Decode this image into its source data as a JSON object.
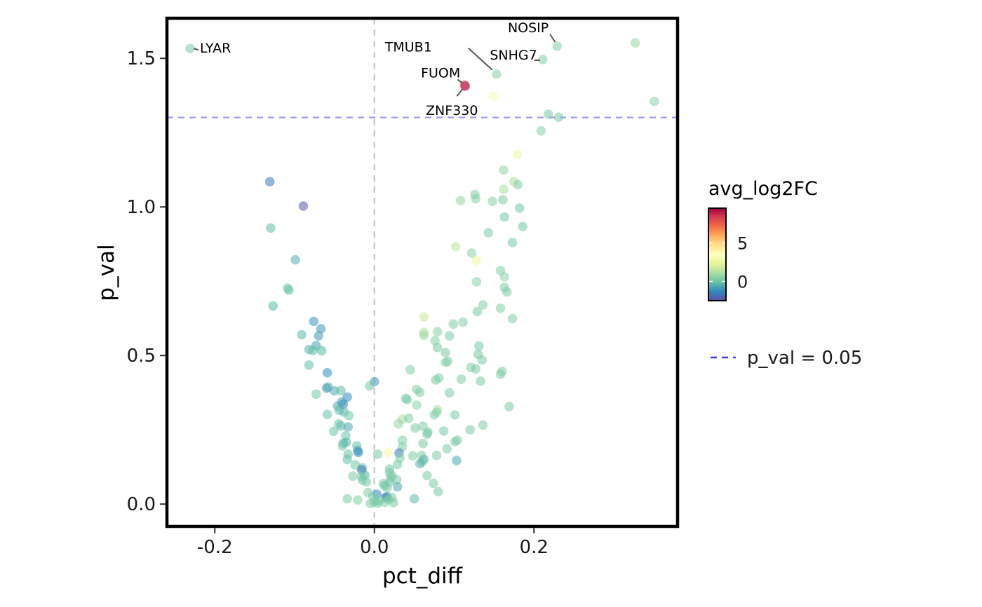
{
  "chart_data": {
    "type": "scatter",
    "xlabel": "pct_diff",
    "ylabel": "p_val",
    "xlim": [
      -0.26,
      0.38
    ],
    "ylim": [
      -0.075,
      1.635
    ],
    "x_ticks": [
      -0.2,
      0.0,
      0.2
    ],
    "x_tick_labels": [
      "-0.2",
      "0.0",
      "0.2"
    ],
    "y_ticks": [
      0.0,
      0.5,
      1.0,
      1.5
    ],
    "y_tick_labels": [
      "0.0",
      "0.5",
      "1.0",
      "1.5"
    ],
    "grid": false,
    "reference_lines": [
      {
        "orientation": "vertical",
        "value": 0.0,
        "color": "#c8c8c8",
        "style": "dashed"
      },
      {
        "orientation": "horizontal",
        "value": 1.301,
        "color": "#9a9af0",
        "style": "dashed"
      }
    ],
    "color_legend": {
      "title": "avg_log2FC",
      "position": "right",
      "range": [
        -2.5,
        9.5
      ],
      "ticks": [
        0,
        5
      ],
      "tick_labels": [
        "0",
        "5"
      ],
      "stops": [
        "#5e4fa2",
        "#3288bd",
        "#66c2a5",
        "#abdda4",
        "#e6f598",
        "#ffffbf",
        "#fee08b",
        "#fdae61",
        "#f46d43",
        "#d53e4f",
        "#9e0142"
      ]
    },
    "line_legend": {
      "label": "p_val = 0.05",
      "color": "#3a3ae0"
    },
    "point_opacity": 0.55,
    "points": [
      {
        "x": -0.231,
        "y": 1.533,
        "c": 0.3,
        "label": "LYAR"
      },
      {
        "x": 0.229,
        "y": 1.541,
        "c": 0.4,
        "label": "NOSIP"
      },
      {
        "x": 0.153,
        "y": 1.447,
        "c": 0.5,
        "label": "TMUB1"
      },
      {
        "x": 0.211,
        "y": 1.496,
        "c": 0.4,
        "label": "SNHG7"
      },
      {
        "x": 0.113,
        "y": 1.41,
        "c": 8.5,
        "label": "FUOM"
      },
      {
        "x": 0.114,
        "y": 1.406,
        "c": 9.0,
        "label": "ZNF330"
      },
      {
        "x": 0.327,
        "y": 1.552,
        "c": 0.8
      },
      {
        "x": 0.149,
        "y": 1.372,
        "c": 3.0
      },
      {
        "x": 0.351,
        "y": 1.355,
        "c": 0.5
      },
      {
        "x": 0.218,
        "y": 1.312,
        "c": 0.3
      },
      {
        "x": 0.231,
        "y": 1.302,
        "c": 0.3
      },
      {
        "x": 0.209,
        "y": 1.256,
        "c": 0.5
      },
      {
        "x": 0.179,
        "y": 1.177,
        "c": 2.7
      },
      {
        "x": -0.131,
        "y": 1.085,
        "c": -1.6
      },
      {
        "x": -0.089,
        "y": 1.003,
        "c": -2.3
      },
      {
        "x": 0.162,
        "y": 1.124,
        "c": 0.7
      },
      {
        "x": 0.175,
        "y": 1.085,
        "c": 1.2
      },
      {
        "x": 0.18,
        "y": 1.075,
        "c": 0.4
      },
      {
        "x": 0.126,
        "y": 1.042,
        "c": 0.5
      },
      {
        "x": 0.162,
        "y": 1.059,
        "c": 1.1
      },
      {
        "x": 0.127,
        "y": 1.028,
        "c": 0.4
      },
      {
        "x": 0.108,
        "y": 1.021,
        "c": 0.8
      },
      {
        "x": 0.148,
        "y": 1.019,
        "c": 0.5
      },
      {
        "x": 0.161,
        "y": 1.024,
        "c": 0.3
      },
      {
        "x": 0.182,
        "y": 0.996,
        "c": 0.2
      },
      {
        "x": 0.163,
        "y": 0.966,
        "c": 0.2
      },
      {
        "x": 0.186,
        "y": 0.934,
        "c": 0.2
      },
      {
        "x": 0.143,
        "y": 0.913,
        "c": 0.3
      },
      {
        "x": 0.173,
        "y": 0.88,
        "c": 0.2
      },
      {
        "x": -0.13,
        "y": 0.929,
        "c": -0.2
      },
      {
        "x": 0.102,
        "y": 0.866,
        "c": 1.5
      },
      {
        "x": 0.122,
        "y": 0.845,
        "c": 0.6
      },
      {
        "x": 0.128,
        "y": 0.82,
        "c": 2.6
      },
      {
        "x": -0.099,
        "y": 0.822,
        "c": -0.5
      },
      {
        "x": 0.158,
        "y": 0.786,
        "c": 0.4
      },
      {
        "x": 0.163,
        "y": 0.765,
        "c": 0.6
      },
      {
        "x": 0.128,
        "y": 0.748,
        "c": 0.5
      },
      {
        "x": 0.163,
        "y": 0.729,
        "c": 0.3
      },
      {
        "x": 0.166,
        "y": 0.714,
        "c": 0.3
      },
      {
        "x": -0.109,
        "y": 0.727,
        "c": 0.1
      },
      {
        "x": -0.107,
        "y": 0.72,
        "c": -0.1
      },
      {
        "x": -0.127,
        "y": 0.667,
        "c": -0.3
      },
      {
        "x": 0.136,
        "y": 0.67,
        "c": 0.4
      },
      {
        "x": 0.158,
        "y": 0.659,
        "c": 0.5
      },
      {
        "x": 0.129,
        "y": 0.648,
        "c": 0.3
      },
      {
        "x": 0.062,
        "y": 0.63,
        "c": 1.6
      },
      {
        "x": 0.173,
        "y": 0.624,
        "c": 0.4
      },
      {
        "x": -0.076,
        "y": 0.615,
        "c": -1.1
      },
      {
        "x": 0.111,
        "y": 0.612,
        "c": 0.4
      },
      {
        "x": 0.099,
        "y": 0.606,
        "c": 0.3
      },
      {
        "x": -0.067,
        "y": 0.59,
        "c": -1.0
      },
      {
        "x": 0.079,
        "y": 0.58,
        "c": 0.5
      },
      {
        "x": 0.062,
        "y": 0.578,
        "c": 1.2
      },
      {
        "x": 0.062,
        "y": 0.568,
        "c": 0.8
      },
      {
        "x": -0.07,
        "y": 0.566,
        "c": -0.9
      },
      {
        "x": -0.091,
        "y": 0.57,
        "c": -0.3
      },
      {
        "x": 0.094,
        "y": 0.566,
        "c": 0.3
      },
      {
        "x": 0.076,
        "y": 0.55,
        "c": 0.5
      },
      {
        "x": -0.073,
        "y": 0.533,
        "c": -0.8
      },
      {
        "x": 0.131,
        "y": 0.532,
        "c": 0.2
      },
      {
        "x": 0.079,
        "y": 0.527,
        "c": 0.3
      },
      {
        "x": -0.082,
        "y": 0.52,
        "c": -0.4
      },
      {
        "x": -0.066,
        "y": 0.516,
        "c": -0.3
      },
      {
        "x": -0.077,
        "y": 0.517,
        "c": -0.2
      },
      {
        "x": 0.089,
        "y": 0.51,
        "c": 0.3
      },
      {
        "x": 0.13,
        "y": 0.504,
        "c": 0.2
      },
      {
        "x": 0.135,
        "y": 0.485,
        "c": 0.3
      },
      {
        "x": 0.092,
        "y": 0.48,
        "c": 0.3
      },
      {
        "x": 0.089,
        "y": 0.477,
        "c": 0.4
      },
      {
        "x": -0.082,
        "y": 0.468,
        "c": -0.2
      },
      {
        "x": 0.121,
        "y": 0.46,
        "c": 0.4
      },
      {
        "x": 0.127,
        "y": 0.455,
        "c": 0.3
      },
      {
        "x": 0.045,
        "y": 0.452,
        "c": 0.4
      },
      {
        "x": 0.16,
        "y": 0.446,
        "c": 0.3
      },
      {
        "x": -0.059,
        "y": 0.442,
        "c": -1.2
      },
      {
        "x": 0.158,
        "y": 0.437,
        "c": 0.4
      },
      {
        "x": 0.081,
        "y": 0.425,
        "c": 0.4
      },
      {
        "x": 0.109,
        "y": 0.42,
        "c": 0.3
      },
      {
        "x": 0.077,
        "y": 0.418,
        "c": 0.3
      },
      {
        "x": 0.133,
        "y": 0.414,
        "c": 0.3
      },
      {
        "x": 0.0,
        "y": 0.412,
        "c": -1.0
      },
      {
        "x": -0.006,
        "y": 0.398,
        "c": 0.2
      },
      {
        "x": -0.058,
        "y": 0.394,
        "c": -0.6
      },
      {
        "x": 0.053,
        "y": 0.386,
        "c": 0.4
      },
      {
        "x": -0.06,
        "y": 0.39,
        "c": -0.8
      },
      {
        "x": -0.05,
        "y": 0.381,
        "c": -0.6
      },
      {
        "x": -0.042,
        "y": 0.382,
        "c": -0.2
      },
      {
        "x": 0.057,
        "y": 0.376,
        "c": 0.3
      },
      {
        "x": 0.094,
        "y": 0.374,
        "c": 0.3
      },
      {
        "x": -0.073,
        "y": 0.37,
        "c": 0.2
      },
      {
        "x": -0.034,
        "y": 0.36,
        "c": -1.2
      },
      {
        "x": 0.039,
        "y": 0.356,
        "c": 0.4
      },
      {
        "x": 0.041,
        "y": 0.352,
        "c": 0.2
      },
      {
        "x": -0.041,
        "y": 0.344,
        "c": -0.7
      },
      {
        "x": -0.039,
        "y": 0.336,
        "c": -1.2
      },
      {
        "x": -0.046,
        "y": 0.33,
        "c": -0.6
      },
      {
        "x": 0.053,
        "y": 0.333,
        "c": 0.5
      },
      {
        "x": 0.169,
        "y": 0.328,
        "c": 0.3
      },
      {
        "x": -0.044,
        "y": 0.316,
        "c": -0.3
      },
      {
        "x": 0.079,
        "y": 0.318,
        "c": 1.3
      },
      {
        "x": -0.038,
        "y": 0.31,
        "c": -0.4
      },
      {
        "x": 0.078,
        "y": 0.309,
        "c": 0.4
      },
      {
        "x": -0.059,
        "y": 0.302,
        "c": -0.1
      },
      {
        "x": 0.075,
        "y": 0.3,
        "c": 0.4
      },
      {
        "x": -0.032,
        "y": 0.298,
        "c": 0.1
      },
      {
        "x": 0.101,
        "y": 0.3,
        "c": 0.3
      },
      {
        "x": 0.035,
        "y": 0.286,
        "c": 1.1
      },
      {
        "x": 0.043,
        "y": 0.289,
        "c": 0.4
      },
      {
        "x": -0.045,
        "y": 0.27,
        "c": 0.1
      },
      {
        "x": -0.042,
        "y": 0.263,
        "c": -0.3
      },
      {
        "x": 0.03,
        "y": 0.27,
        "c": 0.7
      },
      {
        "x": -0.033,
        "y": 0.26,
        "c": -0.6
      },
      {
        "x": 0.061,
        "y": 0.262,
        "c": 0.4
      },
      {
        "x": 0.136,
        "y": 0.266,
        "c": 0.4
      },
      {
        "x": -0.051,
        "y": 0.245,
        "c": 0.0
      },
      {
        "x": 0.051,
        "y": 0.256,
        "c": 0.3
      },
      {
        "x": 0.067,
        "y": 0.242,
        "c": 0.1
      },
      {
        "x": 0.066,
        "y": 0.235,
        "c": 0.2
      },
      {
        "x": 0.087,
        "y": 0.246,
        "c": 0.2
      },
      {
        "x": 0.12,
        "y": 0.25,
        "c": 0.3
      },
      {
        "x": -0.036,
        "y": 0.23,
        "c": 0.0
      },
      {
        "x": 0.104,
        "y": 0.215,
        "c": 0.3
      },
      {
        "x": 0.101,
        "y": 0.21,
        "c": 0.3
      },
      {
        "x": 0.035,
        "y": 0.215,
        "c": 0.4
      },
      {
        "x": -0.035,
        "y": 0.208,
        "c": -0.3
      },
      {
        "x": -0.039,
        "y": 0.205,
        "c": -0.6
      },
      {
        "x": 0.061,
        "y": 0.204,
        "c": 0.3
      },
      {
        "x": -0.022,
        "y": 0.196,
        "c": -0.2
      },
      {
        "x": -0.04,
        "y": 0.196,
        "c": 0.1
      },
      {
        "x": 0.035,
        "y": 0.193,
        "c": 0.3
      },
      {
        "x": -0.021,
        "y": 0.18,
        "c": -0.9
      },
      {
        "x": -0.02,
        "y": 0.174,
        "c": -1.2
      },
      {
        "x": 0.031,
        "y": 0.172,
        "c": -1.6
      },
      {
        "x": 0.017,
        "y": 0.174,
        "c": 2.8
      },
      {
        "x": 0.091,
        "y": 0.186,
        "c": 0.3
      },
      {
        "x": 0.059,
        "y": 0.164,
        "c": 0.4
      },
      {
        "x": -0.033,
        "y": 0.168,
        "c": 0.0
      },
      {
        "x": 0.078,
        "y": 0.164,
        "c": 0.3
      },
      {
        "x": 0.048,
        "y": 0.162,
        "c": 0.4
      },
      {
        "x": 0.004,
        "y": 0.168,
        "c": 0.3
      },
      {
        "x": 0.032,
        "y": 0.155,
        "c": 0.4
      },
      {
        "x": -0.034,
        "y": 0.15,
        "c": -0.2
      },
      {
        "x": 0.062,
        "y": 0.15,
        "c": -0.6
      },
      {
        "x": 0.103,
        "y": 0.147,
        "c": -0.7
      },
      {
        "x": 0.06,
        "y": 0.142,
        "c": 0.1
      },
      {
        "x": 0.057,
        "y": 0.136,
        "c": -0.4
      },
      {
        "x": -0.024,
        "y": 0.132,
        "c": 0.1
      },
      {
        "x": 0.029,
        "y": 0.134,
        "c": 0.2
      },
      {
        "x": -0.015,
        "y": 0.122,
        "c": -0.2
      },
      {
        "x": -0.016,
        "y": 0.115,
        "c": -1.7
      },
      {
        "x": 0.019,
        "y": 0.118,
        "c": 0.0
      },
      {
        "x": 0.019,
        "y": 0.105,
        "c": 0.2
      },
      {
        "x": 0.022,
        "y": 0.096,
        "c": 0.3
      },
      {
        "x": -0.012,
        "y": 0.098,
        "c": -0.4
      },
      {
        "x": 0.066,
        "y": 0.096,
        "c": 0.3
      },
      {
        "x": -0.027,
        "y": 0.094,
        "c": 0.3
      },
      {
        "x": -0.016,
        "y": 0.092,
        "c": 0.2
      },
      {
        "x": 0.021,
        "y": 0.087,
        "c": 0.3
      },
      {
        "x": -0.015,
        "y": 0.081,
        "c": 0.1
      },
      {
        "x": 0.028,
        "y": 0.082,
        "c": 0.3
      },
      {
        "x": 0.019,
        "y": 0.075,
        "c": 0.2
      },
      {
        "x": -0.01,
        "y": 0.075,
        "c": 0.2
      },
      {
        "x": 0.074,
        "y": 0.07,
        "c": 0.3
      },
      {
        "x": 0.011,
        "y": 0.069,
        "c": 0.3
      },
      {
        "x": 0.013,
        "y": 0.062,
        "c": -0.1
      },
      {
        "x": 0.029,
        "y": 0.058,
        "c": -0.6
      },
      {
        "x": 0.016,
        "y": 0.055,
        "c": 0.3
      },
      {
        "x": 0.08,
        "y": 0.042,
        "c": 0.2
      },
      {
        "x": -0.008,
        "y": 0.039,
        "c": 0.3
      },
      {
        "x": 0.003,
        "y": 0.033,
        "c": -1.3
      },
      {
        "x": -0.002,
        "y": 0.027,
        "c": 0.3
      },
      {
        "x": 0.016,
        "y": 0.025,
        "c": -1.0
      },
      {
        "x": 0.014,
        "y": 0.022,
        "c": -1.6
      },
      {
        "x": 0.022,
        "y": 0.022,
        "c": 0.2
      },
      {
        "x": 0.05,
        "y": 0.018,
        "c": -0.3
      },
      {
        "x": -0.034,
        "y": 0.018,
        "c": 0.3
      },
      {
        "x": 0.018,
        "y": 0.015,
        "c": 0.3
      },
      {
        "x": -0.021,
        "y": 0.014,
        "c": 0.4
      },
      {
        "x": 0.006,
        "y": 0.011,
        "c": 0.3
      },
      {
        "x": 0.0,
        "y": 0.008,
        "c": 0.2
      },
      {
        "x": 0.013,
        "y": 0.006,
        "c": 0.4
      },
      {
        "x": 0.024,
        "y": 0.005,
        "c": 0.3
      },
      {
        "x": 0.004,
        "y": 0.003,
        "c": 0.2
      },
      {
        "x": -0.005,
        "y": 0.002,
        "c": 0.3
      }
    ]
  }
}
